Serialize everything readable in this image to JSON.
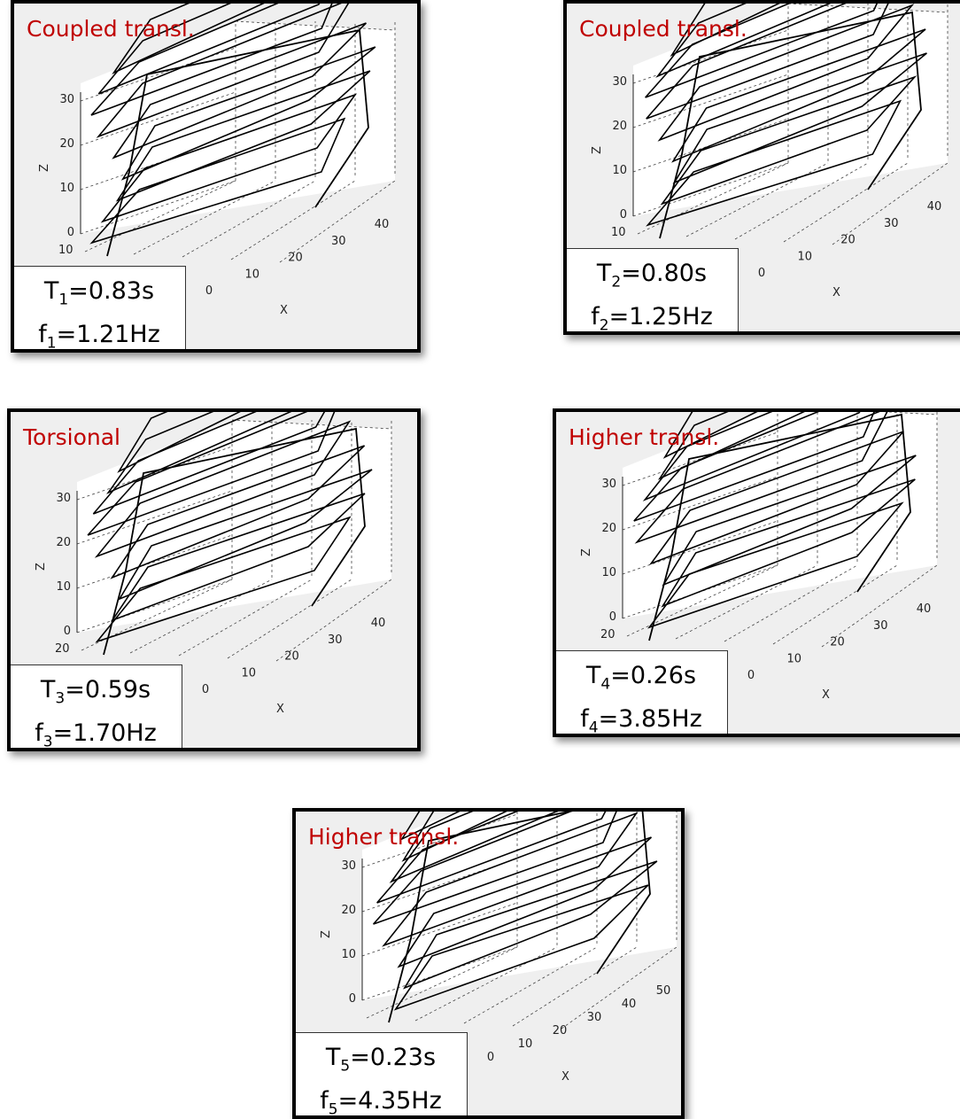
{
  "panels": [
    {
      "title": "Coupled transl.",
      "period": {
        "symbol": "T",
        "subscript": "1",
        "value": "=0.83s"
      },
      "frequency": {
        "symbol": "f",
        "subscript": "1",
        "value": "=1.21Hz"
      },
      "z_label": "Z",
      "z_ticks": [
        "0",
        "10",
        "20",
        "30"
      ],
      "y_ticks": [
        "10"
      ],
      "x_label": "X",
      "x_ticks": [
        "0",
        "10",
        "20",
        "30",
        "40"
      ]
    },
    {
      "title": "Coupled transl.",
      "period": {
        "symbol": "T",
        "subscript": "2",
        "value": "=0.80s"
      },
      "frequency": {
        "symbol": "f",
        "subscript": "2",
        "value": "=1.25Hz"
      },
      "z_label": "Z",
      "z_ticks": [
        "0",
        "10",
        "20",
        "30"
      ],
      "y_ticks": [
        "10"
      ],
      "x_label": "X",
      "x_ticks": [
        "0",
        "10",
        "20",
        "30",
        "40"
      ]
    },
    {
      "title": "Torsional",
      "period": {
        "symbol": "T",
        "subscript": "3",
        "value": "=0.59s"
      },
      "frequency": {
        "symbol": "f",
        "subscript": "3",
        "value": "=1.70Hz"
      },
      "z_label": "Z",
      "z_ticks": [
        "0",
        "10",
        "20",
        "30"
      ],
      "y_ticks": [
        "20"
      ],
      "x_label": "X",
      "x_ticks": [
        "0",
        "10",
        "20",
        "30",
        "40"
      ]
    },
    {
      "title": "Higher transl.",
      "period": {
        "symbol": "T",
        "subscript": "4",
        "value": "=0.26s"
      },
      "frequency": {
        "symbol": "f",
        "subscript": "4",
        "value": "=3.85Hz"
      },
      "z_label": "Z",
      "z_ticks": [
        "0",
        "10",
        "20",
        "30"
      ],
      "y_ticks": [
        "20"
      ],
      "x_label": "X",
      "x_ticks": [
        "0",
        "10",
        "20",
        "30",
        "40"
      ]
    },
    {
      "title": "Higher transl.",
      "period": {
        "symbol": "T",
        "subscript": "5",
        "value": "=0.23s"
      },
      "frequency": {
        "symbol": "f",
        "subscript": "5",
        "value": "=4.35Hz"
      },
      "z_label": "Z",
      "z_ticks": [
        "0",
        "10",
        "20",
        "30"
      ],
      "y_ticks": [],
      "x_label": "X",
      "x_ticks": [
        "0",
        "10",
        "20",
        "30",
        "40",
        "50"
      ]
    }
  ]
}
